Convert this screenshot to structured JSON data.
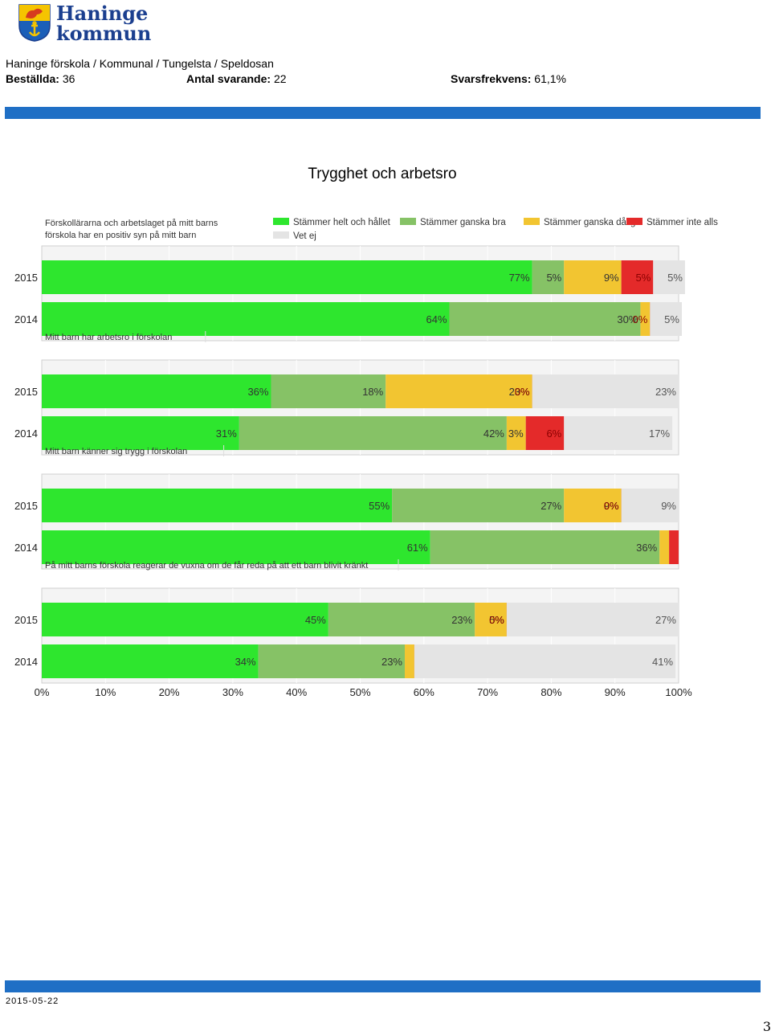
{
  "header": {
    "logo_line1": "Haninge",
    "logo_line2": "kommun",
    "breadcrumb": "Haninge förskola / Kommunal / Tungelsta / Speldosan",
    "ordered_label": "Beställda:",
    "ordered_value": "36",
    "respondents_label": "Antal svarande:",
    "respondents_value": "22",
    "response_rate_label": "Svarsfrekvens:",
    "response_rate_value": "61,1%"
  },
  "page_title": "Trygghet och arbetsro",
  "footer": {
    "date": "2015-05-22",
    "page_number": "3"
  },
  "colors": {
    "header_bar": "#1f6fc5",
    "helt_och_hallet": "#2ee62e",
    "ganska_bra": "#86c266",
    "ganska_daligt": "#f2c531",
    "inte_alls": "#e42a2a",
    "vet_ej": "#e4e4e4"
  },
  "chart_data": {
    "type": "bar",
    "orientation": "horizontal",
    "stacked": true,
    "xlim": [
      0,
      100
    ],
    "x_ticks": [
      "0%",
      "10%",
      "20%",
      "30%",
      "40%",
      "50%",
      "60%",
      "70%",
      "80%",
      "90%",
      "100%"
    ],
    "legend": [
      "Stämmer helt och hållet",
      "Stämmer ganska bra",
      "Stämmer ganska dåligt",
      "Stämmer inte alls",
      "Vet ej"
    ],
    "legend_position": "top",
    "groups": [
      {
        "question": "Förskollärarna och arbetslaget på mitt barns förskola har en positiv syn på mitt barn",
        "bars": [
          {
            "year": "2015",
            "values": [
              77,
              5,
              9,
              5,
              5
            ],
            "labels": [
              "77%",
              "5%",
              "9%",
              "5%",
              "5%"
            ]
          },
          {
            "year": "2014",
            "values": [
              64,
              30,
              1.5,
              0,
              5
            ],
            "labels": [
              "64%",
              "30%",
              "",
              "0%",
              "5%"
            ]
          }
        ]
      },
      {
        "question": "Mitt barn har arbetsro i förskolan",
        "bars": [
          {
            "year": "2015",
            "values": [
              36,
              18,
              23,
              0,
              23
            ],
            "labels": [
              "36%",
              "18%",
              "23%",
              "0%",
              "23%"
            ]
          },
          {
            "year": "2014",
            "values": [
              31,
              42,
              3,
              6,
              17
            ],
            "labels": [
              "31%",
              "42%",
              "3%",
              "6%",
              "17%"
            ]
          }
        ]
      },
      {
        "question": "Mitt barn känner sig trygg i förskolan",
        "bars": [
          {
            "year": "2015",
            "values": [
              55,
              27,
              9,
              0,
              9
            ],
            "labels": [
              "55%",
              "27%",
              "9%",
              "0%",
              "9%"
            ]
          },
          {
            "year": "2014",
            "values": [
              61,
              36,
              1.5,
              1.5,
              0
            ],
            "labels": [
              "61%",
              "36%",
              "",
              "",
              ""
            ]
          }
        ]
      },
      {
        "question": "På mitt barns förskola reagerar de vuxna om de får reda på att ett barn blivit kränkt",
        "bars": [
          {
            "year": "2015",
            "values": [
              45,
              23,
              5,
              0,
              27
            ],
            "labels": [
              "45%",
              "23%",
              "5%",
              "0%",
              "27%"
            ]
          },
          {
            "year": "2014",
            "values": [
              34,
              23,
              1.5,
              0,
              41
            ],
            "labels": [
              "34%",
              "23%",
              "",
              "",
              "41%"
            ]
          }
        ]
      }
    ]
  }
}
